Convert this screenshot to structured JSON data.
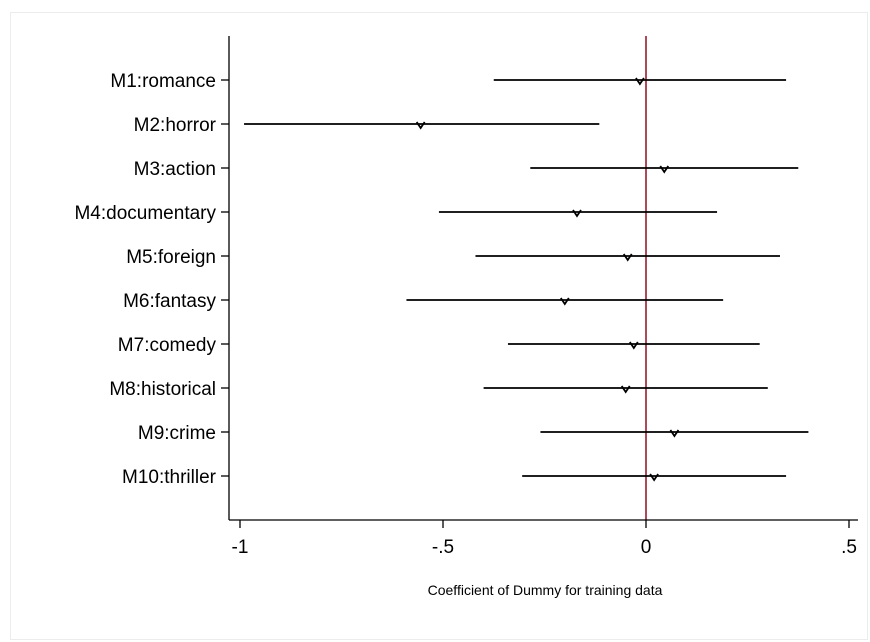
{
  "chart_data": {
    "type": "coefficient-plot",
    "xlabel": "Coefficient of Dummy for training data",
    "ylabel": "",
    "xlim": [
      -1.02,
      0.52
    ],
    "xticks": [
      -1,
      -0.5,
      0,
      0.5
    ],
    "xtick_labels": [
      "-1",
      "-.5",
      "0",
      ".5"
    ],
    "reference_line": {
      "x": 0,
      "color": "#9b1b30"
    },
    "line_color": "#000000",
    "marker": "triangle-down",
    "grid": false,
    "categories": [
      "M1:romance",
      "M2:horror",
      "M3:action",
      "M4:documentary",
      "M5:foreign",
      "M6:fantasy",
      "M7:comedy",
      "M8:historical",
      "M9:crime",
      "M10:thriller"
    ],
    "series": [
      {
        "estimate": [
          -0.015,
          -0.555,
          0.045,
          -0.17,
          -0.045,
          -0.2,
          -0.03,
          -0.05,
          0.07,
          0.02
        ],
        "ci_low": [
          -0.375,
          -0.99,
          -0.285,
          -0.51,
          -0.42,
          -0.59,
          -0.34,
          -0.4,
          -0.26,
          -0.305
        ],
        "ci_high": [
          0.345,
          -0.115,
          0.375,
          0.175,
          0.33,
          0.19,
          0.28,
          0.3,
          0.4,
          0.345
        ]
      }
    ]
  }
}
